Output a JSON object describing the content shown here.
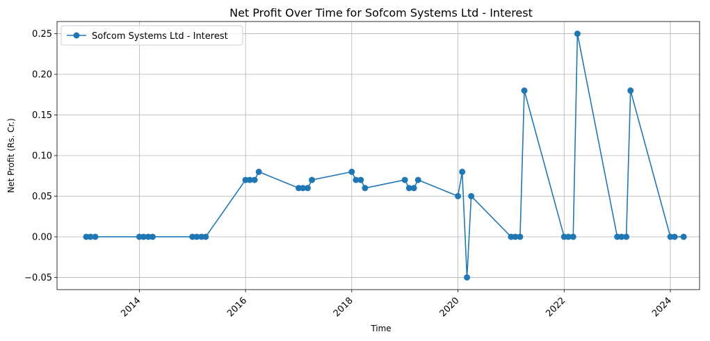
{
  "chart_data": {
    "type": "line",
    "title": "Net Profit Over Time for Sofcom Systems Ltd - Interest",
    "xlabel": "Time",
    "ylabel": "Net Profit (Rs. Cr.)",
    "xlim": [
      2012.45,
      2024.55
    ],
    "ylim": [
      -0.065,
      0.265
    ],
    "x_ticks": [
      "2014",
      "2016",
      "2018",
      "2020",
      "2022",
      "2024"
    ],
    "x_tick_values": [
      2014,
      2016,
      2018,
      2020,
      2022,
      2024
    ],
    "y_ticks": [
      "−0.05",
      "0.00",
      "0.05",
      "0.10",
      "0.15",
      "0.20",
      "0.25"
    ],
    "y_tick_values": [
      -0.05,
      0.0,
      0.05,
      0.1,
      0.15,
      0.2,
      0.25
    ],
    "grid": true,
    "legend_position": "top-left",
    "color": "#1f77b4",
    "series": [
      {
        "name": "Sofcom Systems Ltd - Interest",
        "x": [
          2013.0,
          2013.08,
          2013.17,
          2014.0,
          2014.08,
          2014.17,
          2014.25,
          2015.0,
          2015.08,
          2015.17,
          2015.25,
          2016.0,
          2016.08,
          2016.17,
          2016.25,
          2017.0,
          2017.08,
          2017.17,
          2017.25,
          2018.0,
          2018.08,
          2018.17,
          2018.25,
          2019.0,
          2019.08,
          2019.17,
          2019.25,
          2020.0,
          2020.08,
          2020.17,
          2020.25,
          2021.0,
          2021.08,
          2021.17,
          2021.25,
          2022.0,
          2022.08,
          2022.17,
          2022.25,
          2023.0,
          2023.08,
          2023.17,
          2023.25,
          2024.0,
          2024.08,
          2024.25
        ],
        "y": [
          0,
          0,
          0,
          0,
          0,
          0,
          0,
          0,
          0,
          0,
          0,
          0.07,
          0.07,
          0.07,
          0.08,
          0.06,
          0.06,
          0.06,
          0.07,
          0.08,
          0.07,
          0.07,
          0.06,
          0.07,
          0.06,
          0.06,
          0.07,
          0.05,
          0.08,
          -0.05,
          0.05,
          0,
          0,
          0,
          0.18,
          0,
          0,
          0,
          0.25,
          0,
          0,
          0,
          0.18,
          0,
          0,
          0
        ]
      }
    ]
  }
}
